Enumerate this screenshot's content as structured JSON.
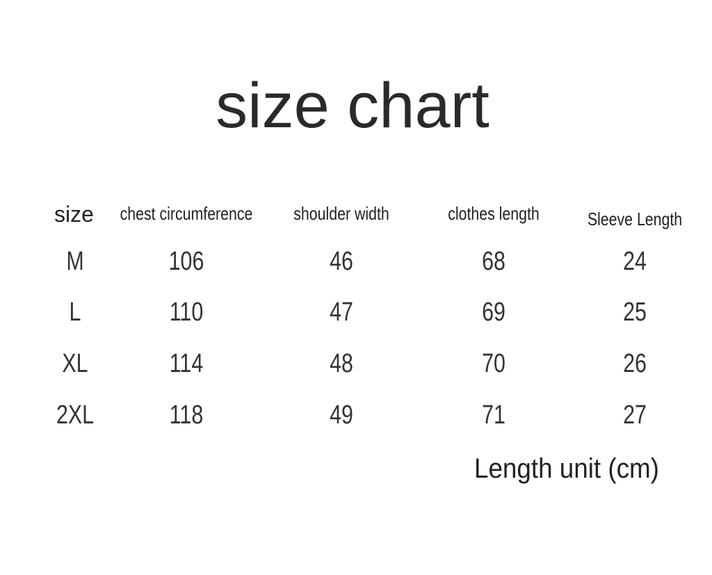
{
  "title": "size chart",
  "table": {
    "headers": [
      "size",
      "chest circumference",
      "shoulder width",
      "clothes length",
      "Sleeve Length"
    ],
    "rows": [
      [
        "M",
        "106",
        "46",
        "68",
        "24"
      ],
      [
        "L",
        "110",
        "47",
        "69",
        "25"
      ],
      [
        "XL",
        "114",
        "48",
        "70",
        "26"
      ],
      [
        "2XL",
        "118",
        "49",
        "71",
        "27"
      ]
    ]
  },
  "unit_note": "Length unit (cm)"
}
